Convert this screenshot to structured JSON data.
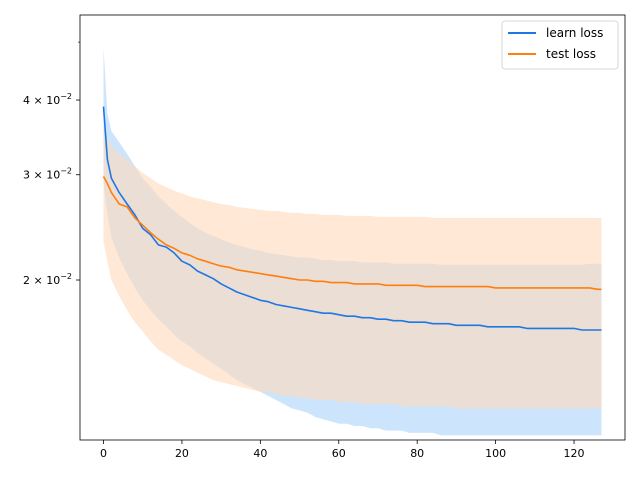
{
  "chart_data": {
    "type": "line",
    "title": "",
    "xlabel": "",
    "ylabel": "",
    "x_scale": "linear",
    "y_scale": "log",
    "xlim": [
      -6,
      133
    ],
    "ylim": [
      0.0108,
      0.0555
    ],
    "grid": false,
    "legend_position": "top-right",
    "x_ticks": [
      {
        "value": 0,
        "label": "0"
      },
      {
        "value": 20,
        "label": "20"
      },
      {
        "value": 40,
        "label": "40"
      },
      {
        "value": 60,
        "label": "60"
      },
      {
        "value": 80,
        "label": "80"
      },
      {
        "value": 100,
        "label": "100"
      },
      {
        "value": 120,
        "label": "120"
      }
    ],
    "y_ticks": [
      {
        "value": 0.02,
        "base": "2 × 10",
        "exp": "−2"
      },
      {
        "value": 0.03,
        "base": "3 × 10",
        "exp": "−2"
      },
      {
        "value": 0.04,
        "base": "4 × 10",
        "exp": "−2"
      }
    ],
    "x": [
      0,
      1,
      2,
      4,
      6,
      8,
      10,
      12,
      14,
      16,
      18,
      20,
      22,
      24,
      26,
      28,
      30,
      32,
      34,
      36,
      38,
      40,
      42,
      44,
      46,
      48,
      50,
      52,
      54,
      56,
      58,
      60,
      62,
      64,
      66,
      68,
      70,
      72,
      74,
      76,
      78,
      80,
      82,
      84,
      86,
      88,
      90,
      92,
      94,
      96,
      98,
      100,
      102,
      104,
      106,
      108,
      110,
      112,
      114,
      116,
      118,
      120,
      122,
      124,
      126,
      127
    ],
    "series": [
      {
        "name": "learn loss",
        "color": "#1f77e4",
        "band_color": "#bcdcfb",
        "values": [
          0.039,
          0.0318,
          0.0296,
          0.028,
          0.0268,
          0.0257,
          0.0244,
          0.0238,
          0.0229,
          0.0227,
          0.0222,
          0.0215,
          0.0212,
          0.0207,
          0.0204,
          0.0201,
          0.0197,
          0.0194,
          0.0191,
          0.0189,
          0.0187,
          0.0185,
          0.0184,
          0.0182,
          0.0181,
          0.018,
          0.0179,
          0.0178,
          0.0177,
          0.0176,
          0.0176,
          0.0175,
          0.0174,
          0.0174,
          0.0173,
          0.0173,
          0.0172,
          0.0172,
          0.0171,
          0.0171,
          0.017,
          0.017,
          0.017,
          0.0169,
          0.0169,
          0.0169,
          0.0168,
          0.0168,
          0.0168,
          0.0168,
          0.0167,
          0.0167,
          0.0167,
          0.0167,
          0.0167,
          0.0166,
          0.0166,
          0.0166,
          0.0166,
          0.0166,
          0.0166,
          0.0166,
          0.0165,
          0.0165,
          0.0165,
          0.0165
        ],
        "band_upper": [
          0.049,
          0.038,
          0.0355,
          0.034,
          0.0325,
          0.031,
          0.0296,
          0.0286,
          0.0276,
          0.0268,
          0.0261,
          0.0255,
          0.0249,
          0.0244,
          0.024,
          0.0237,
          0.0234,
          0.0231,
          0.0229,
          0.0227,
          0.0225,
          0.0224,
          0.0222,
          0.0221,
          0.022,
          0.0219,
          0.0218,
          0.0218,
          0.0217,
          0.0216,
          0.0216,
          0.0215,
          0.0215,
          0.0215,
          0.0214,
          0.0214,
          0.0214,
          0.0214,
          0.0213,
          0.0213,
          0.0213,
          0.0213,
          0.0213,
          0.0213,
          0.0212,
          0.0212,
          0.0212,
          0.0212,
          0.0212,
          0.0212,
          0.0212,
          0.0212,
          0.0212,
          0.0212,
          0.0212,
          0.0212,
          0.0212,
          0.0212,
          0.0212,
          0.0212,
          0.0212,
          0.0212,
          0.0212,
          0.0213,
          0.0213,
          0.0213
        ],
        "band_lower": [
          0.029,
          0.0258,
          0.0235,
          0.0218,
          0.0205,
          0.0194,
          0.0185,
          0.0178,
          0.0172,
          0.0167,
          0.0162,
          0.0158,
          0.0155,
          0.0151,
          0.0148,
          0.0145,
          0.0142,
          0.0139,
          0.0136,
          0.0134,
          0.0132,
          0.013,
          0.0128,
          0.0126,
          0.0124,
          0.0122,
          0.0121,
          0.012,
          0.0118,
          0.0117,
          0.0116,
          0.0115,
          0.0115,
          0.0114,
          0.0114,
          0.0113,
          0.0113,
          0.0112,
          0.0112,
          0.0112,
          0.0111,
          0.0111,
          0.0111,
          0.0111,
          0.011,
          0.011,
          0.011,
          0.011,
          0.011,
          0.011,
          0.011,
          0.011,
          0.011,
          0.011,
          0.011,
          0.011,
          0.011,
          0.011,
          0.011,
          0.011,
          0.011,
          0.011,
          0.011,
          0.011,
          0.011,
          0.011
        ]
      },
      {
        "name": "test loss",
        "color": "#ff7f0e",
        "band_color": "#ffd9b9",
        "values": [
          0.0298,
          0.029,
          0.028,
          0.0268,
          0.0265,
          0.0254,
          0.0247,
          0.024,
          0.0234,
          0.0229,
          0.0226,
          0.0222,
          0.022,
          0.0217,
          0.0215,
          0.0213,
          0.0211,
          0.021,
          0.0208,
          0.0207,
          0.0206,
          0.0205,
          0.0204,
          0.0203,
          0.0202,
          0.0201,
          0.02,
          0.02,
          0.0199,
          0.0199,
          0.0198,
          0.0198,
          0.0198,
          0.0197,
          0.0197,
          0.0197,
          0.0197,
          0.0196,
          0.0196,
          0.0196,
          0.0196,
          0.0196,
          0.0195,
          0.0195,
          0.0195,
          0.0195,
          0.0195,
          0.0195,
          0.0195,
          0.0195,
          0.0195,
          0.0194,
          0.0194,
          0.0194,
          0.0194,
          0.0194,
          0.0194,
          0.0194,
          0.0194,
          0.0194,
          0.0194,
          0.0194,
          0.0194,
          0.0194,
          0.0193,
          0.0193
        ],
        "band_upper": [
          0.036,
          0.0345,
          0.0335,
          0.0325,
          0.0318,
          0.031,
          0.0302,
          0.0296,
          0.029,
          0.0286,
          0.0282,
          0.0279,
          0.0276,
          0.0274,
          0.0272,
          0.027,
          0.0268,
          0.0267,
          0.0265,
          0.0264,
          0.0263,
          0.0262,
          0.0261,
          0.0261,
          0.026,
          0.0259,
          0.0259,
          0.0258,
          0.0258,
          0.0257,
          0.0257,
          0.0257,
          0.0256,
          0.0256,
          0.0256,
          0.0256,
          0.0255,
          0.0255,
          0.0255,
          0.0255,
          0.0255,
          0.0255,
          0.0255,
          0.0254,
          0.0254,
          0.0254,
          0.0254,
          0.0254,
          0.0254,
          0.0254,
          0.0254,
          0.0254,
          0.0254,
          0.0254,
          0.0254,
          0.0254,
          0.0254,
          0.0254,
          0.0254,
          0.0254,
          0.0254,
          0.0254,
          0.0254,
          0.0254,
          0.0254,
          0.0254
        ],
        "band_lower": [
          0.0232,
          0.0215,
          0.02,
          0.0188,
          0.0178,
          0.017,
          0.0164,
          0.0158,
          0.0153,
          0.015,
          0.0147,
          0.0144,
          0.0142,
          0.014,
          0.0138,
          0.0136,
          0.0135,
          0.0134,
          0.0133,
          0.0132,
          0.0131,
          0.013,
          0.013,
          0.0129,
          0.0128,
          0.0128,
          0.0127,
          0.0127,
          0.0126,
          0.0126,
          0.0126,
          0.0125,
          0.0125,
          0.0125,
          0.0124,
          0.0124,
          0.0124,
          0.0124,
          0.0124,
          0.0123,
          0.0123,
          0.0123,
          0.0123,
          0.0123,
          0.0123,
          0.0123,
          0.0122,
          0.0122,
          0.0122,
          0.0122,
          0.0122,
          0.0122,
          0.0122,
          0.0122,
          0.0122,
          0.0122,
          0.0122,
          0.0122,
          0.0122,
          0.0122,
          0.0122,
          0.0122,
          0.0122,
          0.0122,
          0.0122,
          0.0122
        ]
      }
    ]
  }
}
